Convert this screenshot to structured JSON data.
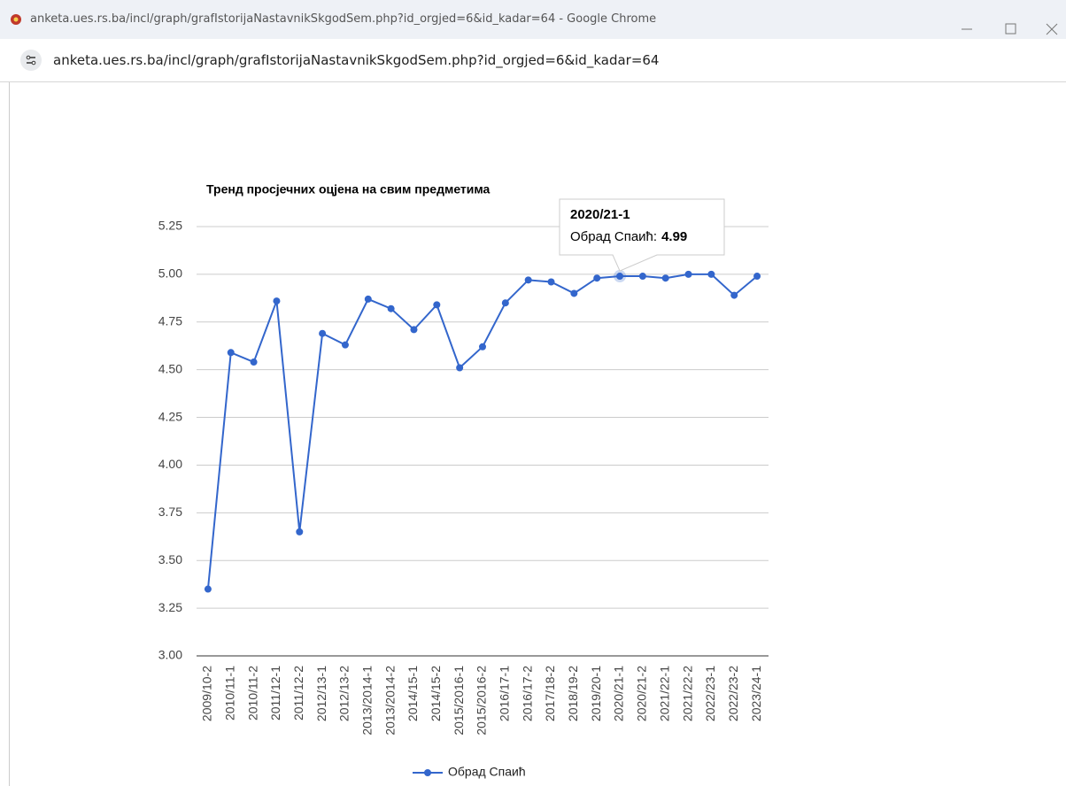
{
  "window": {
    "title": "anketa.ues.rs.ba/incl/graph/grafIstorijaNastavnikSkgodSem.php?id_orgjed=6&id_kadar=64 - Google Chrome",
    "url": "anketa.ues.rs.ba/incl/graph/grafIstorijaNastavnikSkgodSem.php?id_orgjed=6&id_kadar=64"
  },
  "chart_data": {
    "type": "line",
    "title": "Тренд просјечних оцјена на свим предметима",
    "categories": [
      "2009/10-2",
      "2010/11-1",
      "2010/11-2",
      "2011/12-1",
      "2011/12-2",
      "2012/13-1",
      "2012/13-2",
      "2013/2014-1",
      "2013/2014-2",
      "2014/15-1",
      "2014/15-2",
      "2015/2016-1",
      "2015/2016-2",
      "2016/17-1",
      "2016/17-2",
      "2017/18-2",
      "2018/19-2",
      "2019/20-1",
      "2020/21-1",
      "2020/21-2",
      "2021/22-1",
      "2021/22-2",
      "2022/23-1",
      "2022/23-2",
      "2023/24-1"
    ],
    "series": [
      {
        "name": "Обрад Спаић",
        "color": "#3366cc",
        "values": [
          3.35,
          4.59,
          4.54,
          4.86,
          3.65,
          4.69,
          4.63,
          4.87,
          4.82,
          4.71,
          4.84,
          4.51,
          4.62,
          4.85,
          4.97,
          4.96,
          4.9,
          4.98,
          4.99,
          4.99,
          4.98,
          5.0,
          5.0,
          4.89,
          4.99
        ]
      }
    ],
    "ylim": [
      3,
      5.25
    ],
    "yticks": [
      {
        "value": 3,
        "label": "3.00"
      },
      3.25,
      {
        "value": 3.5,
        "label": "3.50"
      },
      3.75,
      {
        "value": 4,
        "label": "4.00"
      },
      4.25,
      {
        "value": 4.5,
        "label": "4.50"
      },
      4.75,
      {
        "value": 5,
        "label": "5.00"
      },
      5.25
    ],
    "grid": true,
    "legend": "bottom",
    "tooltip": {
      "category": "2020/21-1",
      "label": "Обрад Спаић:",
      "value_label": "4.99"
    }
  }
}
